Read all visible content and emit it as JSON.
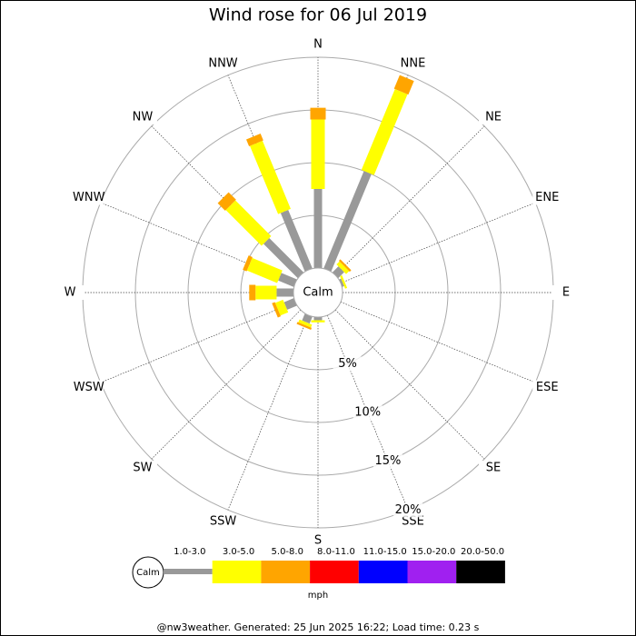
{
  "chart_data": {
    "type": "windrose",
    "title": "Wind rose for 06 Jul 2019",
    "categories": [
      "N",
      "NNE",
      "NE",
      "ENE",
      "E",
      "ESE",
      "SE",
      "SSE",
      "S",
      "SSW",
      "SW",
      "WSW",
      "W",
      "WNW",
      "NW",
      "NNW"
    ],
    "series": [
      {
        "name": "1.0-3.0",
        "color": "#999999",
        "values": [
          7.5,
          10.0,
          0.8,
          0.2,
          0,
          0,
          0,
          0,
          0.3,
          0.7,
          0,
          1.0,
          1.6,
          1.6,
          4.6,
          6.0
        ]
      },
      {
        "name": "3.0-5.0",
        "color": "#ffff00",
        "values": [
          6.6,
          8.3,
          0.4,
          0.2,
          0,
          0,
          0,
          0,
          0.2,
          0.3,
          0,
          0.8,
          2.0,
          3.1,
          4.8,
          7.0
        ]
      },
      {
        "name": "5.0-8.0",
        "color": "#ffa500",
        "values": [
          1.1,
          1.4,
          0.2,
          0,
          0,
          0,
          0,
          0,
          0,
          0.2,
          0,
          0.3,
          0.6,
          0.4,
          1.0,
          0.7
        ]
      },
      {
        "name": "8.0-11.0",
        "color": "#ff0000",
        "values": [
          0,
          0,
          0,
          0,
          0,
          0,
          0,
          0,
          0,
          0,
          0,
          0,
          0,
          0,
          0,
          0
        ]
      },
      {
        "name": "11.0-15.0",
        "color": "#0000ff",
        "values": [
          0,
          0,
          0,
          0,
          0,
          0,
          0,
          0,
          0,
          0,
          0,
          0,
          0,
          0,
          0,
          0
        ]
      },
      {
        "name": "15.0-20.0",
        "color": "#a020f0",
        "values": [
          0,
          0,
          0,
          0,
          0,
          0,
          0,
          0,
          0,
          0,
          0,
          0,
          0,
          0,
          0,
          0
        ]
      },
      {
        "name": "20.0-50.0",
        "color": "#000000",
        "values": [
          0,
          0,
          0,
          0,
          0,
          0,
          0,
          0,
          0,
          0,
          0,
          0,
          0,
          0,
          0,
          0
        ]
      }
    ],
    "rlim": [
      0,
      20
    ],
    "rticks": [
      {
        "value": 5,
        "label": "5%"
      },
      {
        "value": 10,
        "label": "10%"
      },
      {
        "value": 15,
        "label": "15%"
      },
      {
        "value": 20,
        "label": "20%"
      }
    ],
    "calm_label": "Calm",
    "unit_label": "mph",
    "footer": "@nw3weather. Generated: 25 Jun 2025 16:22; Load time: 0.23 s"
  }
}
